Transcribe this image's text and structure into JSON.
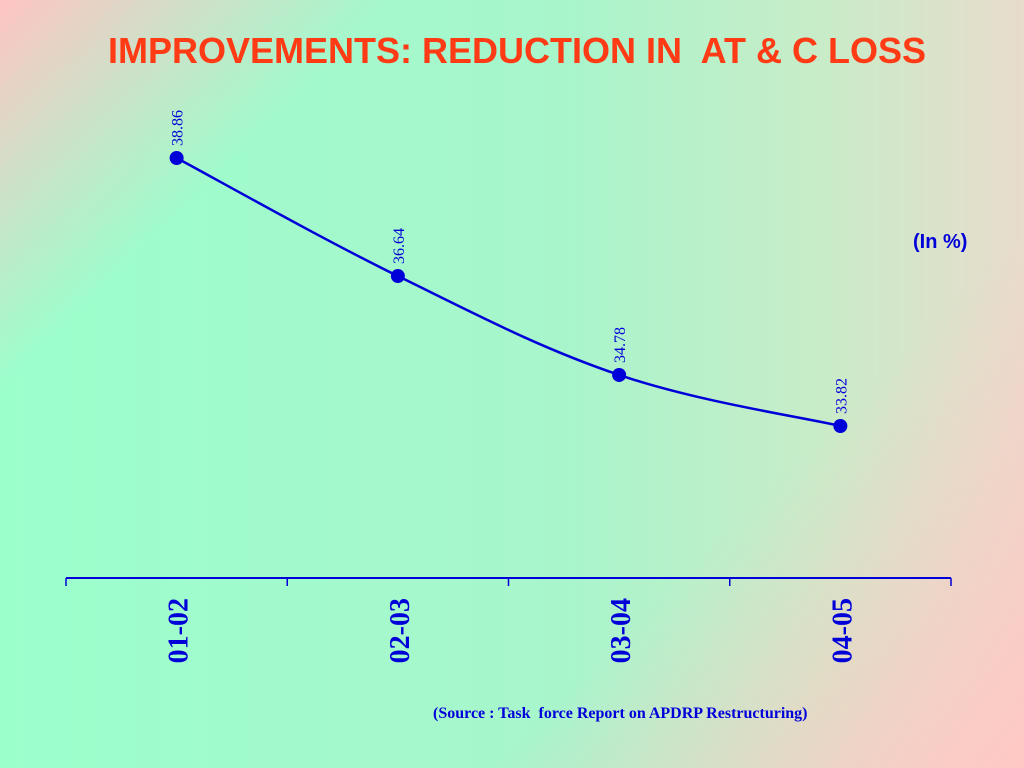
{
  "title": "IMPROVEMENTS: REDUCTION IN  AT & C LOSS",
  "unit_label": "(In %)",
  "source": "(Source : Task  force Report on APDRP Restructuring)",
  "colors": {
    "title": "#ff3b16",
    "series": "#0000d8"
  },
  "chart_data": {
    "type": "line",
    "title": "IMPROVEMENTS: REDUCTION IN  AT & C LOSS",
    "xlabel": "",
    "ylabel": "",
    "unit": "(In %)",
    "categories": [
      "01-02",
      "02-03",
      "03-04",
      "04-05"
    ],
    "series": [
      {
        "values": [
          38.86,
          36.64,
          34.78,
          33.82
        ]
      }
    ],
    "data_labels": [
      "38.86",
      "36.64",
      "34.78",
      "33.82"
    ],
    "grid": false,
    "legend": "none"
  }
}
